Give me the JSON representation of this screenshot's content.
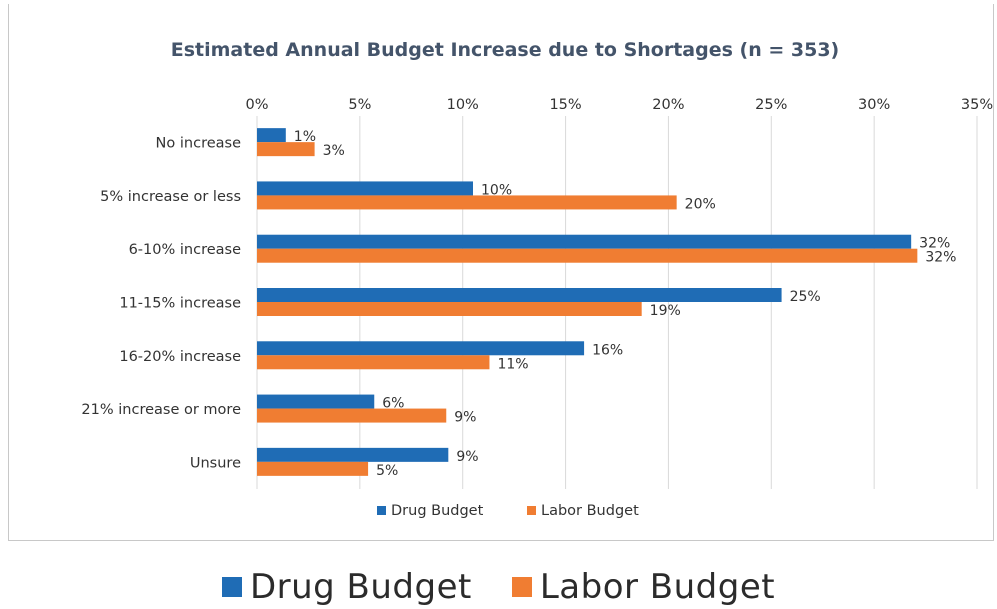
{
  "chart_data": {
    "type": "bar",
    "orientation": "horizontal",
    "title": "Estimated Annual Budget Increase due to Shortages (n = 353)",
    "categories": [
      "No increase",
      "5% increase or less",
      "6-10% increase",
      "11-15% increase",
      "16-20% increase",
      "21% increase or more",
      "Unsure"
    ],
    "series": [
      {
        "name": "Drug Budget",
        "color": "#1f6cb5",
        "values": [
          1.4,
          10.5,
          31.8,
          25.5,
          15.9,
          5.7,
          9.3
        ],
        "labels": [
          "1%",
          "10%",
          "32%",
          "25%",
          "16%",
          "6%",
          "9%"
        ]
      },
      {
        "name": "Labor Budget",
        "color": "#f07d32",
        "values": [
          2.8,
          20.4,
          32.1,
          18.7,
          11.3,
          9.2,
          5.4
        ],
        "labels": [
          "3%",
          "20%",
          "32%",
          "19%",
          "11%",
          "9%",
          "5%"
        ]
      }
    ],
    "xlim": [
      0,
      35
    ],
    "xticks": [
      "0%",
      "5%",
      "10%",
      "15%",
      "20%",
      "25%",
      "30%",
      "35%"
    ],
    "xaxis_position": "top",
    "grid": true,
    "legend_position": "bottom"
  },
  "big_legend": [
    {
      "label": "Drug Budget",
      "color": "#1f6cb5"
    },
    {
      "label": "Labor Budget",
      "color": "#f07d32"
    }
  ]
}
